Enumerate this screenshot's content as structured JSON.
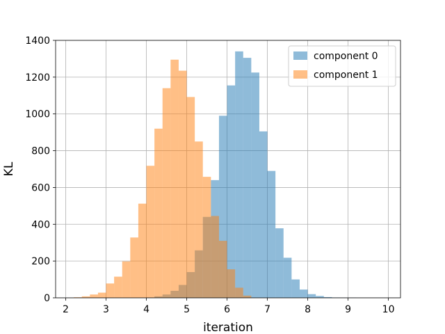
{
  "chart_data": {
    "type": "histogram",
    "xlabel": "iteration",
    "ylabel": "KL",
    "xlim": [
      1.75,
      10.3
    ],
    "ylim": [
      0,
      1400
    ],
    "xticks": [
      2,
      3,
      4,
      5,
      6,
      7,
      8,
      9,
      10
    ],
    "yticks": [
      0,
      200,
      400,
      600,
      800,
      1000,
      1200,
      1400
    ],
    "grid": true,
    "legend_position": "top-right",
    "series": [
      {
        "name": "component 0",
        "color": "#1f77b4",
        "opacity": 0.5,
        "bin_edges": [
          4.0,
          4.2,
          4.4,
          4.6,
          4.8,
          5.0,
          5.2,
          5.4,
          5.6,
          5.8,
          6.0,
          6.2,
          6.4,
          6.6,
          6.8,
          7.0,
          7.2,
          7.4,
          7.6,
          7.8,
          8.0,
          8.2,
          8.4,
          8.6,
          8.8,
          9.0,
          9.2
        ],
        "counts": [
          2,
          8,
          18,
          38,
          70,
          140,
          258,
          440,
          640,
          990,
          1155,
          1340,
          1305,
          1225,
          905,
          690,
          378,
          218,
          100,
          45,
          20,
          10,
          4,
          2,
          1,
          1
        ]
      },
      {
        "name": "component 1",
        "color": "#ff7f0e",
        "opacity": 0.5,
        "bin_edges": [
          2.2,
          2.4,
          2.6,
          2.8,
          3.0,
          3.2,
          3.4,
          3.6,
          3.8,
          4.0,
          4.2,
          4.4,
          4.6,
          4.8,
          5.0,
          5.2,
          5.4,
          5.6,
          5.8,
          6.0,
          6.2,
          6.4,
          6.6
        ],
        "counts": [
          3,
          8,
          18,
          28,
          78,
          115,
          198,
          328,
          512,
          718,
          920,
          1140,
          1295,
          1235,
          1092,
          850,
          658,
          445,
          310,
          155,
          55,
          12
        ]
      }
    ]
  }
}
